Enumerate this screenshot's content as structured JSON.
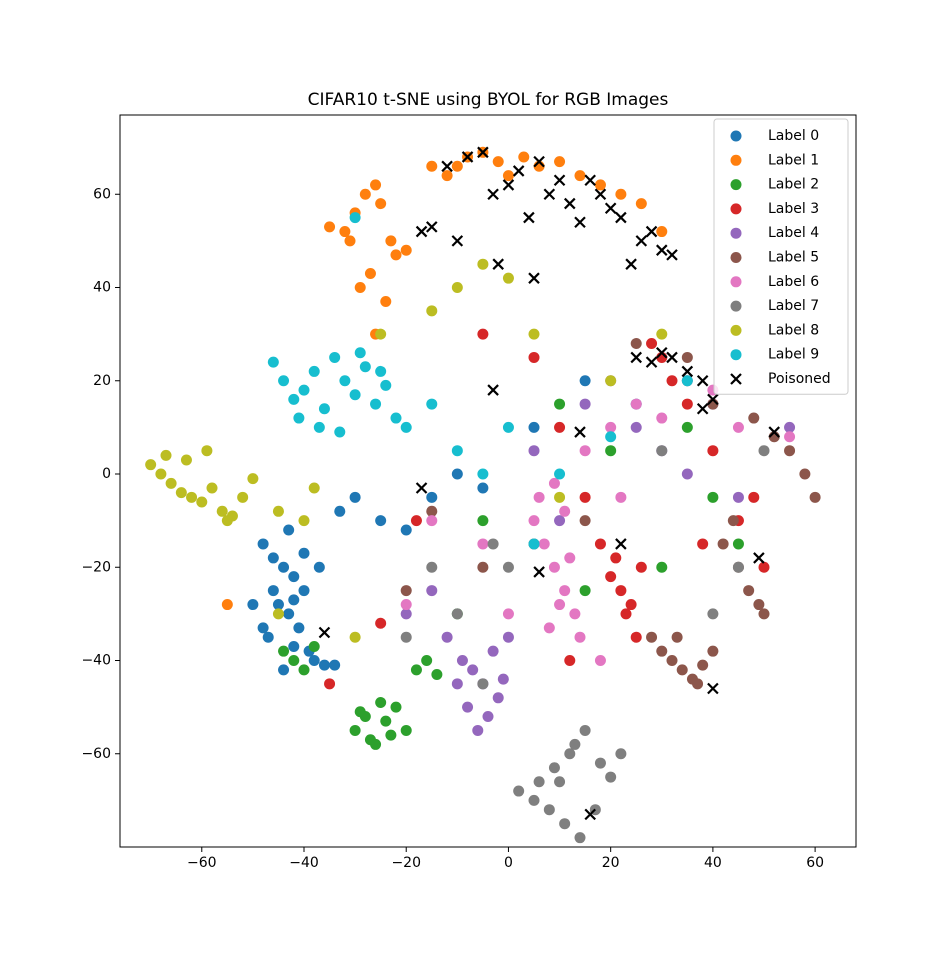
{
  "chart_data": {
    "type": "scatter",
    "title": "CIFAR10 t-SNE using BYOL for RGB Images",
    "xlim": [
      -76,
      68
    ],
    "ylim": [
      -80,
      77
    ],
    "xticks": [
      {
        "value": -60,
        "label": "−60"
      },
      {
        "value": -40,
        "label": "−40"
      },
      {
        "value": -20,
        "label": "−20"
      },
      0,
      20,
      40,
      60
    ],
    "yticks": [
      {
        "value": -60,
        "label": "−60"
      },
      {
        "value": -40,
        "label": "−40"
      },
      {
        "value": -20,
        "label": "−20"
      },
      0,
      20,
      40,
      60
    ],
    "grid": false,
    "legend": "upper right",
    "series": [
      {
        "name": "Label 0",
        "color": "#1f77b4",
        "marker": "o",
        "x": [
          -48,
          -46,
          -44,
          -42,
          -40,
          -45,
          -43,
          -41,
          -47,
          -39,
          -38,
          -44,
          -42,
          -36,
          -34,
          -46,
          -40,
          -43,
          -37,
          -33,
          -50,
          -30,
          -25,
          -20,
          -15,
          -10,
          -5,
          5,
          15,
          25,
          -48,
          -42
        ],
        "y": [
          -15,
          -18,
          -20,
          -22,
          -25,
          -28,
          -30,
          -33,
          -35,
          -38,
          -40,
          -42,
          -27,
          -41,
          -41,
          -25,
          -17,
          -12,
          -20,
          -8,
          -28,
          -5,
          -10,
          -12,
          -5,
          0,
          -3,
          10,
          20,
          15,
          -33,
          -37
        ]
      },
      {
        "name": "Label 1",
        "color": "#ff7f0e",
        "marker": "o",
        "x": [
          -35,
          -32,
          -30,
          -28,
          -26,
          -25,
          -23,
          -22,
          -20,
          -27,
          -29,
          -24,
          -26,
          -31,
          -10,
          -8,
          -5,
          -2,
          0,
          3,
          6,
          10,
          14,
          18,
          22,
          26,
          30,
          -12,
          -15,
          -55
        ],
        "y": [
          53,
          52,
          56,
          60,
          62,
          58,
          50,
          47,
          48,
          43,
          40,
          37,
          30,
          50,
          66,
          68,
          69,
          67,
          64,
          68,
          66,
          67,
          64,
          62,
          60,
          58,
          52,
          64,
          66,
          -28
        ]
      },
      {
        "name": "Label 2",
        "color": "#2ca02c",
        "marker": "o",
        "x": [
          -30,
          -28,
          -26,
          -24,
          -22,
          -20,
          -27,
          -25,
          -23,
          -29,
          -44,
          -42,
          -40,
          -38,
          -18,
          -16,
          -14,
          -5,
          10,
          20,
          30,
          40,
          45,
          35,
          -10,
          15
        ],
        "y": [
          -55,
          -52,
          -58,
          -53,
          -50,
          -55,
          -57,
          -49,
          -56,
          -51,
          -38,
          -40,
          -42,
          -37,
          -42,
          -40,
          -43,
          -10,
          15,
          5,
          -20,
          -5,
          -15,
          10,
          -30,
          -25
        ]
      },
      {
        "name": "Label 3",
        "color": "#d62728",
        "marker": "o",
        "x": [
          20,
          22,
          24,
          26,
          23,
          21,
          25,
          18,
          15,
          10,
          5,
          30,
          35,
          40,
          45,
          50,
          28,
          32,
          12,
          -5,
          -25,
          -35,
          -18,
          48,
          38
        ],
        "y": [
          -22,
          -25,
          -28,
          -20,
          -30,
          -18,
          -35,
          -15,
          -5,
          10,
          25,
          25,
          15,
          5,
          -10,
          -20,
          28,
          20,
          -40,
          30,
          -32,
          -45,
          -10,
          -5,
          -15
        ]
      },
      {
        "name": "Label 4",
        "color": "#9467bd",
        "marker": "o",
        "x": [
          -10,
          -8,
          -6,
          -4,
          -2,
          -9,
          -7,
          -5,
          -3,
          -1,
          0,
          -12,
          5,
          10,
          15,
          20,
          25,
          30,
          35,
          -20,
          -15,
          40,
          45,
          55
        ],
        "y": [
          -45,
          -50,
          -55,
          -52,
          -48,
          -40,
          -42,
          -45,
          -38,
          -44,
          -35,
          -35,
          5,
          -10,
          15,
          20,
          10,
          5,
          0,
          -30,
          -25,
          15,
          -5,
          10
        ]
      },
      {
        "name": "Label 5",
        "color": "#8c564b",
        "marker": "o",
        "x": [
          30,
          32,
          34,
          36,
          38,
          40,
          33,
          37,
          45,
          47,
          49,
          50,
          42,
          44,
          55,
          58,
          60,
          52,
          48,
          40,
          35,
          25,
          15,
          5,
          -5,
          -15,
          -20,
          28
        ],
        "y": [
          -38,
          -40,
          -42,
          -44,
          -41,
          -38,
          -35,
          -45,
          -20,
          -25,
          -28,
          -30,
          -15,
          -10,
          5,
          0,
          -5,
          8,
          12,
          15,
          25,
          28,
          -10,
          -15,
          -20,
          -8,
          -25,
          -35
        ]
      },
      {
        "name": "Label 6",
        "color": "#e377c2",
        "marker": "o",
        "x": [
          5,
          7,
          9,
          11,
          13,
          8,
          10,
          12,
          6,
          14,
          9,
          11,
          15,
          20,
          25,
          30,
          35,
          40,
          45,
          55,
          -15,
          -20,
          -5,
          0,
          18,
          22
        ],
        "y": [
          -10,
          -15,
          -20,
          -25,
          -30,
          -33,
          -28,
          -18,
          -5,
          -35,
          -2,
          -8,
          5,
          10,
          15,
          12,
          20,
          18,
          10,
          8,
          -10,
          -28,
          -15,
          -30,
          -40,
          -5
        ]
      },
      {
        "name": "Label 7",
        "color": "#7f7f7f",
        "marker": "o",
        "x": [
          2,
          5,
          8,
          10,
          12,
          15,
          18,
          20,
          22,
          11,
          14,
          17,
          13,
          9,
          6,
          -5,
          -10,
          -15,
          0,
          30,
          40,
          50,
          45,
          35,
          -20,
          -3
        ],
        "y": [
          -68,
          -70,
          -72,
          -66,
          -60,
          -55,
          -62,
          -65,
          -60,
          -75,
          -78,
          -72,
          -58,
          -63,
          -66,
          -45,
          -30,
          -20,
          -20,
          5,
          -30,
          5,
          -20,
          20,
          -35,
          -15
        ]
      },
      {
        "name": "Label 8",
        "color": "#bcbd22",
        "marker": "o",
        "x": [
          -70,
          -68,
          -66,
          -64,
          -62,
          -60,
          -58,
          -56,
          -54,
          -52,
          -50,
          -67,
          -63,
          -59,
          -55,
          -45,
          -40,
          -38,
          -10,
          -5,
          0,
          5,
          -15,
          -25,
          20,
          30,
          -30,
          -45,
          10
        ],
        "y": [
          2,
          0,
          -2,
          -4,
          -5,
          -6,
          -3,
          -8,
          -9,
          -5,
          -1,
          4,
          3,
          5,
          -10,
          -8,
          -10,
          -3,
          40,
          45,
          42,
          30,
          35,
          30,
          20,
          30,
          -35,
          -30,
          -5
        ]
      },
      {
        "name": "Label 9",
        "color": "#17becf",
        "marker": "o",
        "x": [
          -46,
          -44,
          -42,
          -40,
          -38,
          -36,
          -34,
          -32,
          -30,
          -28,
          -26,
          -24,
          -22,
          -41,
          -37,
          -33,
          -29,
          -25,
          -20,
          -15,
          -10,
          -5,
          0,
          5,
          10,
          -30,
          20,
          35
        ],
        "y": [
          24,
          20,
          16,
          18,
          22,
          14,
          25,
          20,
          17,
          23,
          15,
          19,
          12,
          12,
          10,
          9,
          26,
          22,
          10,
          15,
          5,
          0,
          10,
          -15,
          0,
          55,
          8,
          20
        ]
      },
      {
        "name": "Poisoned",
        "color": "#000000",
        "marker": "x",
        "x": [
          -17,
          -15,
          -12,
          -8,
          -5,
          -3,
          0,
          2,
          4,
          6,
          8,
          10,
          12,
          14,
          16,
          18,
          20,
          22,
          24,
          26,
          28,
          30,
          32,
          -10,
          -2,
          5,
          25,
          28,
          30,
          32,
          35,
          38,
          40,
          -3,
          14,
          -17,
          -36,
          16,
          40,
          49,
          6,
          22,
          52,
          38
        ],
        "y": [
          52,
          53,
          66,
          68,
          69,
          60,
          62,
          65,
          55,
          67,
          60,
          63,
          58,
          54,
          63,
          60,
          57,
          55,
          45,
          50,
          52,
          48,
          47,
          50,
          45,
          42,
          25,
          24,
          26,
          25,
          22,
          14,
          16,
          18,
          9,
          -3,
          -34,
          -73,
          -46,
          -18,
          -21,
          -15,
          9,
          20
        ]
      }
    ]
  }
}
